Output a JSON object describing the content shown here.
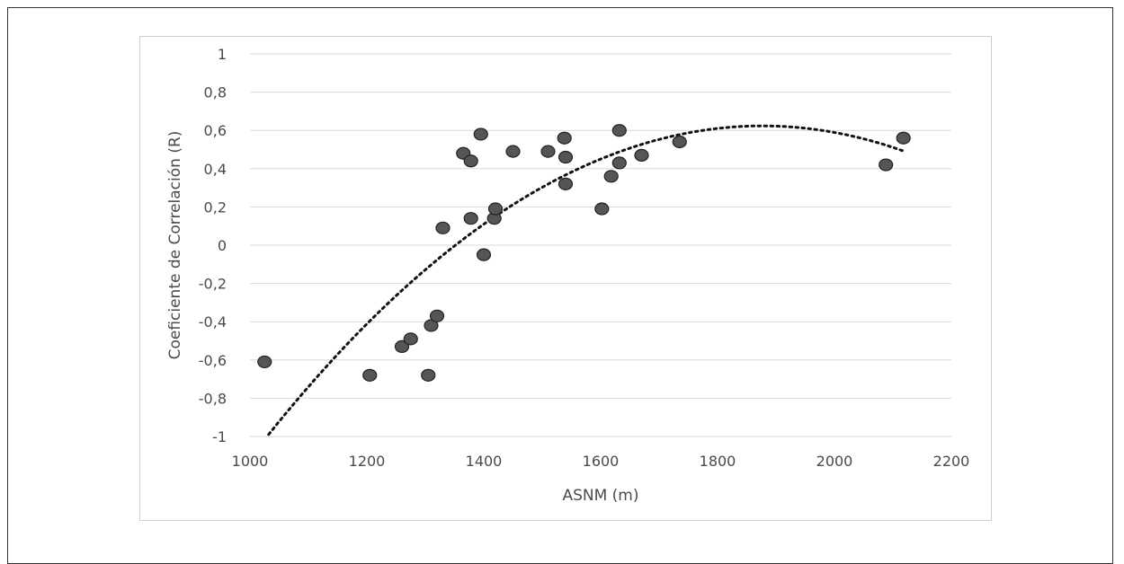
{
  "chart_data": {
    "type": "scatter",
    "xlabel": "ASNM (m)",
    "ylabel": "Coeficiente de Correlación (R)",
    "xlim": [
      1000,
      2200
    ],
    "ylim": [
      -1,
      1
    ],
    "x_ticks": [
      1000,
      1200,
      1400,
      1600,
      1800,
      2000,
      2200
    ],
    "y_ticks": [
      1,
      0.8,
      0.6,
      0.4,
      0.2,
      0,
      -0.2,
      -0.4,
      -0.6,
      -0.8,
      -1
    ],
    "x_tick_labels": [
      "1000",
      "1200",
      "1400",
      "1600",
      "1800",
      "2000",
      "2200"
    ],
    "y_tick_labels": [
      "1",
      "0,8",
      "0,6",
      "0,4",
      "0,2",
      "0",
      "-0,2",
      "-0,4",
      "-0,6",
      "-0,8",
      "-1"
    ],
    "grid": "horizontal",
    "trendline": {
      "type": "polynomial",
      "order": 2,
      "style": "dotted"
    },
    "points": [
      {
        "x": 1025,
        "y": -0.61
      },
      {
        "x": 1205,
        "y": -0.68
      },
      {
        "x": 1260,
        "y": -0.53
      },
      {
        "x": 1275,
        "y": -0.49
      },
      {
        "x": 1305,
        "y": -0.68
      },
      {
        "x": 1310,
        "y": -0.42
      },
      {
        "x": 1320,
        "y": -0.37
      },
      {
        "x": 1330,
        "y": 0.09
      },
      {
        "x": 1365,
        "y": 0.48
      },
      {
        "x": 1378,
        "y": 0.44
      },
      {
        "x": 1378,
        "y": 0.14
      },
      {
        "x": 1395,
        "y": 0.58
      },
      {
        "x": 1400,
        "y": -0.05
      },
      {
        "x": 1418,
        "y": 0.14
      },
      {
        "x": 1420,
        "y": 0.19
      },
      {
        "x": 1450,
        "y": 0.49
      },
      {
        "x": 1510,
        "y": 0.49
      },
      {
        "x": 1538,
        "y": 0.56
      },
      {
        "x": 1540,
        "y": 0.46
      },
      {
        "x": 1540,
        "y": 0.32
      },
      {
        "x": 1602,
        "y": 0.19
      },
      {
        "x": 1618,
        "y": 0.36
      },
      {
        "x": 1632,
        "y": 0.6
      },
      {
        "x": 1632,
        "y": 0.43
      },
      {
        "x": 1670,
        "y": 0.47
      },
      {
        "x": 1735,
        "y": 0.54
      },
      {
        "x": 2088,
        "y": 0.42
      },
      {
        "x": 2118,
        "y": 0.56
      }
    ],
    "colors": {
      "marker_fill": "#555555",
      "marker_stroke": "#222222",
      "grid": "#d9d9d9",
      "text": "#4a4a4a"
    }
  }
}
